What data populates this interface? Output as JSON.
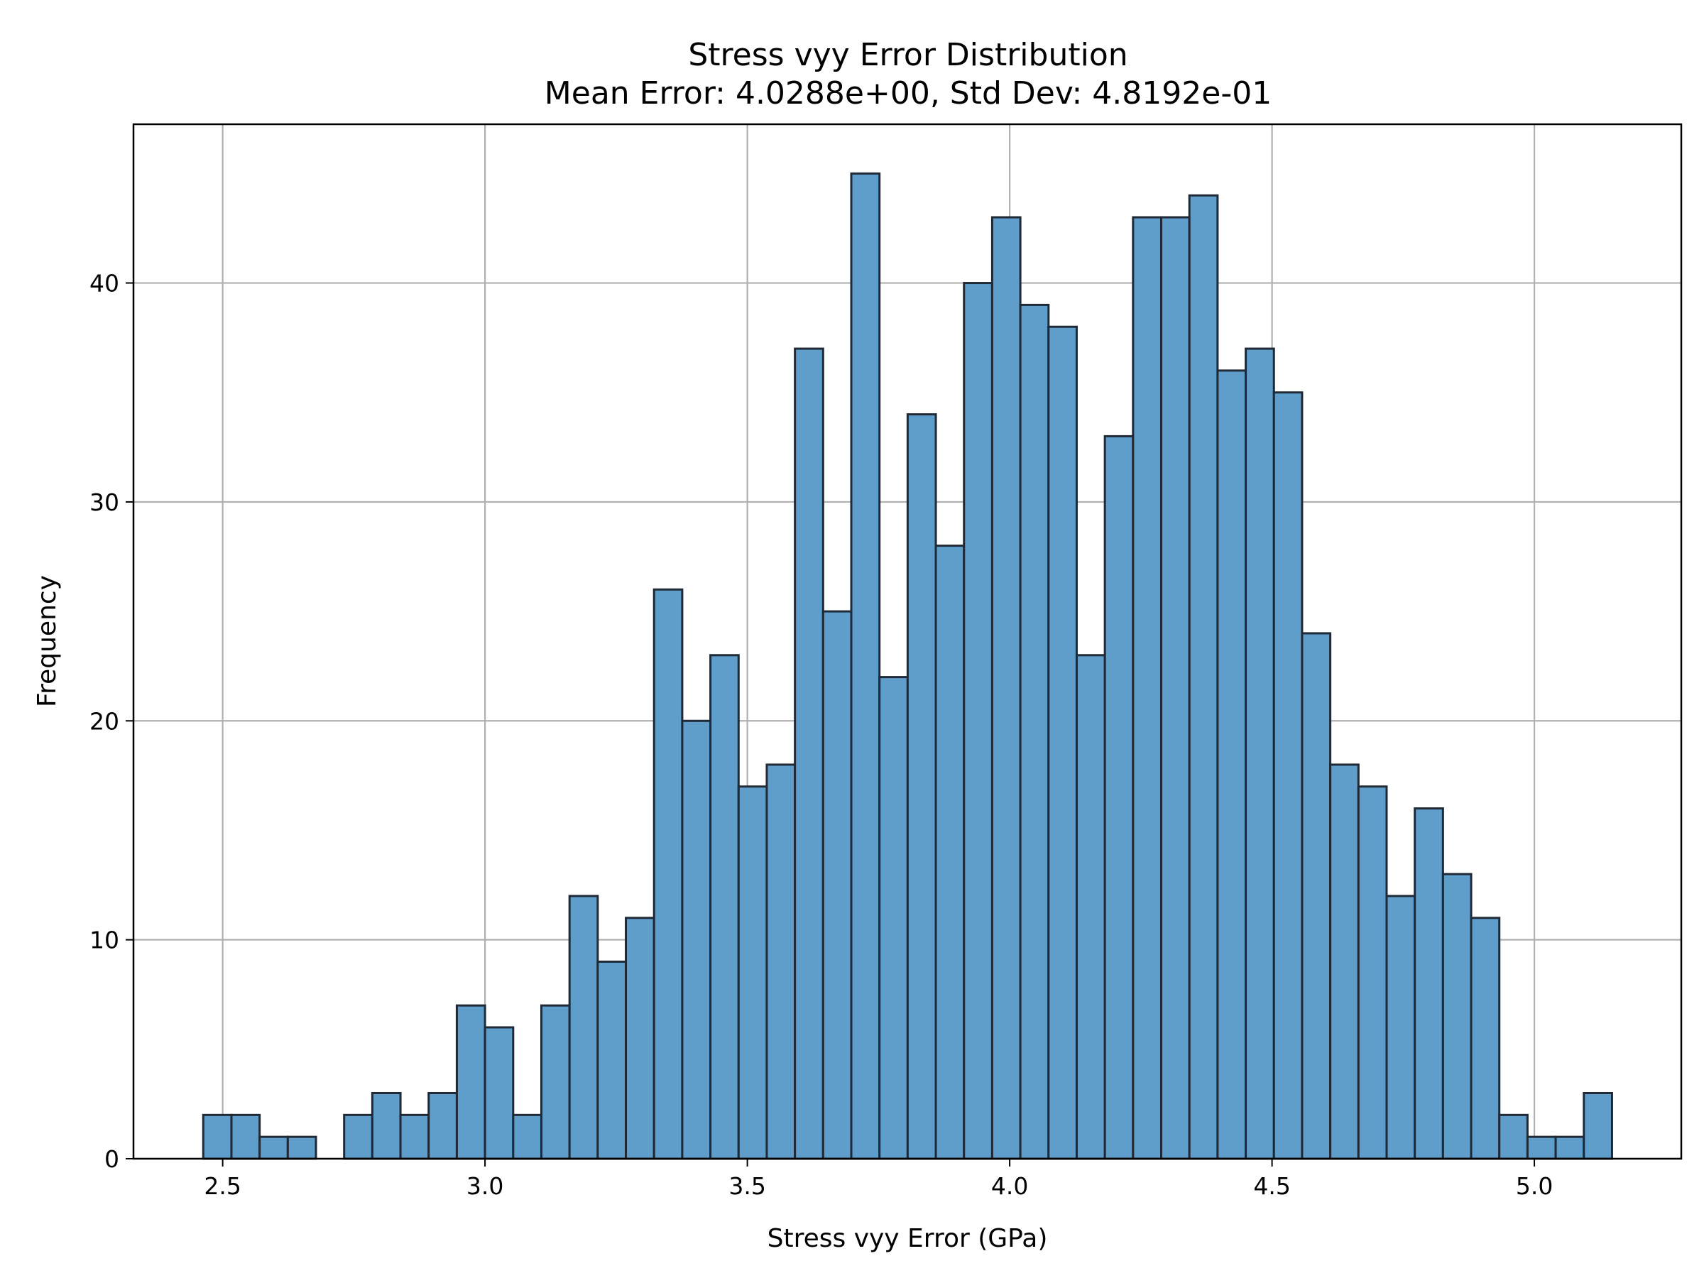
{
  "chart_data": {
    "type": "bar",
    "title": "Stress vyy Error Distribution",
    "subtitle": "Mean Error: 4.0288e+00, Std Dev: 4.8192e-01",
    "xlabel": "Stress vyy Error (GPa)",
    "ylabel": "Frequency",
    "xlim": [
      2.33,
      5.28
    ],
    "ylim": [
      0,
      47.25
    ],
    "grid": true,
    "bar_color": "#5f9dcb",
    "edge_color": "#1f2a36",
    "x_ticks": [
      2.5,
      3.0,
      3.5,
      4.0,
      4.5,
      5.0
    ],
    "x_tick_labels": [
      "2.5",
      "3.0",
      "3.5",
      "4.0",
      "4.5",
      "5.0"
    ],
    "y_ticks": [
      0,
      10,
      20,
      30,
      40
    ],
    "y_tick_labels": [
      "0",
      "10",
      "20",
      "30",
      "40"
    ],
    "bin_start": 2.463,
    "bin_width": 0.0537,
    "values": [
      2,
      2,
      1,
      1,
      0,
      2,
      3,
      2,
      3,
      7,
      6,
      2,
      7,
      12,
      9,
      11,
      26,
      20,
      23,
      17,
      18,
      37,
      25,
      45,
      22,
      34,
      28,
      40,
      43,
      39,
      38,
      23,
      33,
      43,
      43,
      44,
      36,
      37,
      35,
      24,
      18,
      17,
      12,
      16,
      13,
      11,
      2,
      1,
      1,
      3
    ]
  }
}
